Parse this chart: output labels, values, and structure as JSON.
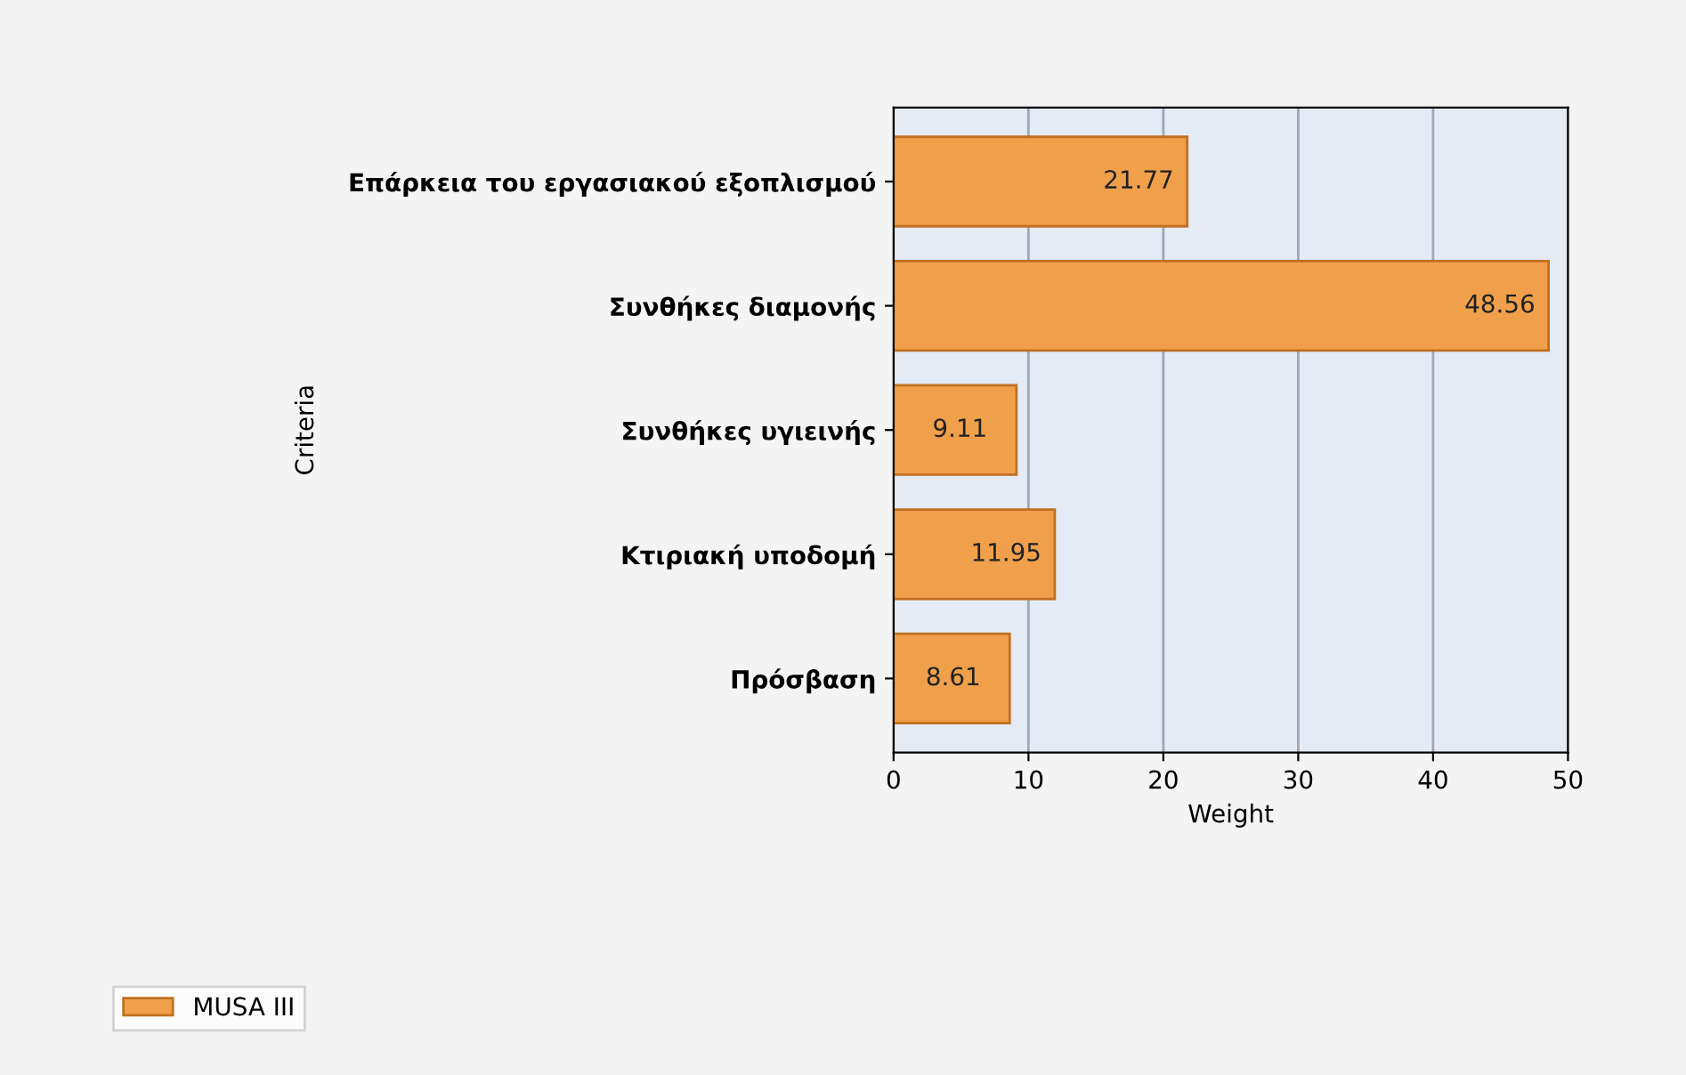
{
  "chart_data": {
    "type": "bar",
    "orientation": "horizontal",
    "xlabel": "Weight",
    "ylabel": "Criteria",
    "categories": [
      "Επάρκεια του εργασιακού εξοπλισμού",
      "Συνθήκες διαμονής",
      "Συνθήκες υγιεινής",
      "Κτιριακή υποδομή",
      "Πρόσβαση"
    ],
    "series": [
      {
        "name": "MUSA III",
        "color": "#f0a04b",
        "values": [
          21.77,
          48.56,
          9.11,
          11.95,
          8.61
        ]
      }
    ],
    "xlim": [
      0,
      50
    ],
    "xticks": [
      0,
      10,
      20,
      30,
      40,
      50
    ],
    "grid": "x",
    "data_labels": true,
    "legend": "bottom left"
  }
}
